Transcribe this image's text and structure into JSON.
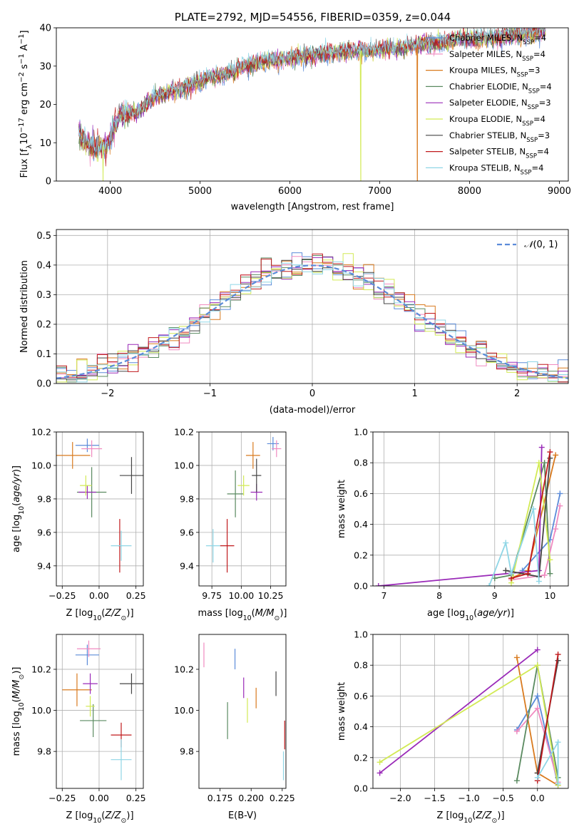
{
  "figure": {
    "colors": {
      "Chabrier MILES": "#5b8bd9",
      "Salpeter MILES": "#f08ac0",
      "Kroupa MILES": "#d97a1e",
      "Chabrier ELODIE": "#5a8a60",
      "Salpeter ELODIE": "#9a2ab8",
      "Kroupa ELODIE": "#d2ea55",
      "Chabrier STELIB": "#444444",
      "Salpeter STELIB": "#c0191c",
      "Kroupa STELIB": "#8fd6e6"
    }
  },
  "chart_data": [
    {
      "id": "spectrum",
      "type": "line",
      "title": "PLATE=2792, MJD=54556, FIBERID=0359, z=0.044",
      "xlabel": "wavelength [Angstrom, rest frame]",
      "ylabel": "Flux [f",
      "ylabel_html": "Flux [fλ10⁻¹⁷ erg cm⁻² s⁻¹ A⁻¹]",
      "xlim": [
        3400,
        9100
      ],
      "ylim": [
        0,
        40
      ],
      "xticks": [
        4000,
        5000,
        6000,
        7000,
        8000,
        9000
      ],
      "yticks": [
        0,
        10,
        20,
        30,
        40
      ],
      "legend_placement": "top-right",
      "legend": [
        "Chabrier MILES, NSSP=4",
        "Salpeter MILES, NSSP=4",
        "Kroupa MILES, NSSP=3",
        "Chabrier ELODIE, NSSP=4",
        "Salpeter ELODIE, NSSP=3",
        "Kroupa ELODIE, NSSP=4",
        "Chabrier STELIB, NSSP=3",
        "Salpeter STELIB, NSSP=4",
        "Kroupa STELIB, NSSP=4"
      ],
      "continuum": {
        "x": [
          3650,
          3800,
          3950,
          4100,
          4300,
          4500,
          4700,
          4900,
          5100,
          5300,
          5500,
          5700,
          5900,
          6100,
          6300,
          6500,
          6700,
          6900,
          7100,
          7300,
          7500,
          7700,
          7900,
          8100,
          8300,
          8500,
          8700,
          8850
        ],
        "y": [
          12,
          9,
          9,
          17,
          18,
          22,
          23.5,
          25,
          27,
          28,
          30,
          31,
          31.5,
          32.5,
          33,
          33.5,
          34,
          34,
          34.5,
          35,
          36,
          36,
          37,
          37,
          37.5,
          38,
          38.5,
          39
        ]
      },
      "dropouts": [
        {
          "series": "Kroupa ELODIE",
          "x": 3920,
          "y": 0
        },
        {
          "series": "Kroupa ELODIE",
          "x": 6790,
          "y": 0
        },
        {
          "series": "Kroupa MILES",
          "x": 7420,
          "y": 0
        }
      ]
    },
    {
      "id": "residual-histogram",
      "type": "histogram",
      "xlabel": "(data-model)/error",
      "ylabel": "Normed distribution",
      "xlim": [
        -2.5,
        2.5
      ],
      "ylim": [
        0,
        0.52
      ],
      "xticks": [
        -2,
        -1,
        0,
        1,
        2
      ],
      "yticks": [
        0.0,
        0.1,
        0.2,
        0.3,
        0.4,
        0.5
      ],
      "grid": true,
      "bin_width": 0.1,
      "reference_curve": {
        "name": "𝒩(0,1)",
        "mean": 0,
        "sigma": 1,
        "style": "dashed"
      },
      "legend_placement": "top-right"
    },
    {
      "id": "age-vs-Z",
      "type": "scatter",
      "xlabel": "Z [log10(Z/Z☉)]",
      "ylabel": "age  [log10(age/yr)]",
      "xlim": [
        -0.29,
        0.3
      ],
      "ylim": [
        9.28,
        10.2
      ],
      "xticks": [
        -0.25,
        0.0,
        0.25
      ],
      "yticks": [
        9.4,
        9.6,
        9.8,
        10.0,
        10.2
      ],
      "grid": true,
      "points": [
        {
          "series": "Chabrier MILES",
          "x": -0.08,
          "xerr": 0.08,
          "y": 10.12,
          "yerr": 0.04
        },
        {
          "series": "Salpeter MILES",
          "x": -0.05,
          "xerr": 0.07,
          "y": 10.1,
          "yerr": 0.05
        },
        {
          "series": "Kroupa MILES",
          "x": -0.18,
          "xerr": 0.12,
          "y": 10.06,
          "yerr": 0.08
        },
        {
          "series": "Chabrier ELODIE",
          "x": -0.05,
          "xerr": 0.1,
          "y": 9.84,
          "yerr": 0.15
        },
        {
          "series": "Salpeter ELODIE",
          "x": -0.08,
          "xerr": 0.06,
          "y": 9.84,
          "yerr": 0.04
        },
        {
          "series": "Kroupa ELODIE",
          "x": -0.09,
          "xerr": 0.04,
          "y": 9.88,
          "yerr": 0.06
        },
        {
          "series": "Chabrier STELIB",
          "x": 0.22,
          "xerr": 0.08,
          "y": 9.94,
          "yerr": 0.11
        },
        {
          "series": "Salpeter STELIB",
          "x": 0.14,
          "xerr": 0.01,
          "y": 9.52,
          "yerr": 0.16
        },
        {
          "series": "Kroupa STELIB",
          "x": 0.15,
          "xerr": 0.07,
          "y": 9.52,
          "yerr": 0.09
        }
      ]
    },
    {
      "id": "age-vs-mass",
      "type": "scatter",
      "xlabel": "mass [log10(M/M☉)]",
      "ylabel": "",
      "xlim": [
        9.64,
        10.38
      ],
      "ylim": [
        9.28,
        10.2
      ],
      "xticks": [
        9.75,
        10.0,
        10.25
      ],
      "yticks": [
        9.4,
        9.6,
        9.8,
        10.0,
        10.2
      ],
      "grid": true,
      "points": [
        {
          "series": "Chabrier MILES",
          "x": 10.27,
          "xerr": 0.05,
          "y": 10.13,
          "yerr": 0.04
        },
        {
          "series": "Salpeter MILES",
          "x": 10.3,
          "xerr": 0.04,
          "y": 10.1,
          "yerr": 0.05
        },
        {
          "series": "Kroupa MILES",
          "x": 10.1,
          "xerr": 0.06,
          "y": 10.06,
          "yerr": 0.08
        },
        {
          "series": "Chabrier ELODIE",
          "x": 9.95,
          "xerr": 0.07,
          "y": 9.83,
          "yerr": 0.14
        },
        {
          "series": "Salpeter ELODIE",
          "x": 10.13,
          "xerr": 0.05,
          "y": 9.84,
          "yerr": 0.05
        },
        {
          "series": "Kroupa ELODIE",
          "x": 10.02,
          "xerr": 0.05,
          "y": 9.88,
          "yerr": 0.06
        },
        {
          "series": "Chabrier STELIB",
          "x": 10.13,
          "xerr": 0.04,
          "y": 9.94,
          "yerr": 0.1
        },
        {
          "series": "Salpeter STELIB",
          "x": 9.88,
          "xerr": 0.06,
          "y": 9.52,
          "yerr": 0.16
        },
        {
          "series": "Kroupa STELIB",
          "x": 9.76,
          "xerr": 0.06,
          "y": 9.52,
          "yerr": 0.1
        }
      ]
    },
    {
      "id": "massweight-vs-age",
      "type": "line",
      "xlabel": "age  [log10(age/yr)]",
      "ylabel": "mass weight",
      "xlim": [
        6.8,
        10.33
      ],
      "ylim": [
        0.0,
        1.0
      ],
      "xticks": [
        7,
        8,
        9,
        10
      ],
      "yticks": [
        0.0,
        0.2,
        0.4,
        0.6,
        0.8,
        1.0
      ],
      "grid": true,
      "series": [
        {
          "name": "Chabrier MILES",
          "x": [
            9.5,
            10.0,
            10.18
          ],
          "y": [
            0.1,
            0.3,
            0.6
          ]
        },
        {
          "name": "Salpeter MILES",
          "x": [
            9.3,
            9.9,
            10.1,
            10.18
          ],
          "y": [
            0.04,
            0.07,
            0.37,
            0.52
          ]
        },
        {
          "name": "Kroupa MILES",
          "x": [
            9.3,
            9.6,
            10.1
          ],
          "y": [
            0.05,
            0.1,
            0.85
          ]
        },
        {
          "name": "Chabrier ELODIE",
          "x": [
            9.0,
            9.3,
            9.9,
            10.0
          ],
          "y": [
            0.05,
            0.07,
            0.8,
            0.08
          ]
        },
        {
          "name": "Salpeter ELODIE",
          "x": [
            6.9,
            9.8,
            9.85
          ],
          "y": [
            0.0,
            0.1,
            0.9
          ]
        },
        {
          "name": "Kroupa ELODIE",
          "x": [
            9.3,
            9.8,
            10.0
          ],
          "y": [
            0.02,
            0.8,
            0.17
          ]
        },
        {
          "name": "Chabrier STELIB",
          "x": [
            9.2,
            9.8,
            10.0
          ],
          "y": [
            0.1,
            0.06,
            0.83
          ]
        },
        {
          "name": "Salpeter STELIB",
          "x": [
            9.3,
            9.6,
            10.0
          ],
          "y": [
            0.05,
            0.08,
            0.87
          ]
        },
        {
          "name": "Kroupa STELIB",
          "x": [
            8.9,
            9.2,
            9.3,
            9.7,
            9.8
          ],
          "y": [
            0.0,
            0.28,
            0.08,
            0.5,
            0.03
          ]
        }
      ]
    },
    {
      "id": "mass-vs-Z",
      "type": "scatter",
      "xlabel": "Z [log10(Z/Z☉)]",
      "ylabel": "mass [log10(M/M☉)]",
      "xlim": [
        -0.29,
        0.3
      ],
      "ylim": [
        9.62,
        10.37
      ],
      "xticks": [
        -0.25,
        0.0,
        0.25
      ],
      "yticks": [
        9.8,
        10.0,
        10.2
      ],
      "grid": true,
      "points": [
        {
          "series": "Chabrier MILES",
          "x": -0.08,
          "xerr": 0.08,
          "y": 10.27,
          "yerr": 0.05
        },
        {
          "series": "Salpeter MILES",
          "x": -0.07,
          "xerr": 0.08,
          "y": 10.3,
          "yerr": 0.04
        },
        {
          "series": "Kroupa MILES",
          "x": -0.15,
          "xerr": 0.1,
          "y": 10.1,
          "yerr": 0.08
        },
        {
          "series": "Chabrier ELODIE",
          "x": -0.04,
          "xerr": 0.09,
          "y": 9.95,
          "yerr": 0.08
        },
        {
          "series": "Salpeter ELODIE",
          "x": -0.06,
          "xerr": 0.05,
          "y": 10.13,
          "yerr": 0.05
        },
        {
          "series": "Kroupa ELODIE",
          "x": -0.06,
          "xerr": 0.03,
          "y": 10.02,
          "yerr": 0.05
        },
        {
          "series": "Chabrier STELIB",
          "x": 0.22,
          "xerr": 0.08,
          "y": 10.13,
          "yerr": 0.05
        },
        {
          "series": "Salpeter STELIB",
          "x": 0.15,
          "xerr": 0.07,
          "y": 9.88,
          "yerr": 0.06
        },
        {
          "series": "Kroupa STELIB",
          "x": 0.15,
          "xerr": 0.07,
          "y": 9.76,
          "yerr": 0.1
        }
      ]
    },
    {
      "id": "EBV",
      "type": "scatter",
      "xlabel": "E(B-V)",
      "ylabel": "",
      "xlim": [
        0.158,
        0.228
      ],
      "ylim": [
        9.62,
        10.37
      ],
      "xticks": [
        0.175,
        0.2,
        0.225
      ],
      "yticks": [
        9.8,
        10.0,
        10.2
      ],
      "grid": false,
      "points": [
        {
          "series": "Chabrier MILES",
          "x": 0.187,
          "xerr": 0,
          "y": 10.25,
          "yerr": 0.05
        },
        {
          "series": "Salpeter MILES",
          "x": 0.162,
          "xerr": 0,
          "y": 10.27,
          "yerr": 0.06
        },
        {
          "series": "Kroupa MILES",
          "x": 0.204,
          "xerr": 0,
          "y": 10.06,
          "yerr": 0.05
        },
        {
          "series": "Chabrier ELODIE",
          "x": 0.181,
          "xerr": 0,
          "y": 9.95,
          "yerr": 0.09
        },
        {
          "series": "Salpeter ELODIE",
          "x": 0.194,
          "xerr": 0,
          "y": 10.11,
          "yerr": 0.05
        },
        {
          "series": "Kroupa ELODIE",
          "x": 0.197,
          "xerr": 0,
          "y": 10.0,
          "yerr": 0.06
        },
        {
          "series": "Chabrier STELIB",
          "x": 0.22,
          "xerr": 0,
          "y": 10.13,
          "yerr": 0.06
        },
        {
          "series": "Salpeter STELIB",
          "x": 0.227,
          "xerr": 0,
          "y": 9.88,
          "yerr": 0.07
        },
        {
          "series": "Kroupa STELIB",
          "x": 0.226,
          "xerr": 0,
          "y": 9.73,
          "yerr": 0.07
        }
      ]
    },
    {
      "id": "massweight-vs-Z",
      "type": "line",
      "xlabel": "Z [log10(Z/Z☉)]",
      "ylabel": "mass weight",
      "xlim": [
        -2.4,
        0.45
      ],
      "ylim": [
        0.0,
        1.0
      ],
      "xticks": [
        -2.0,
        -1.5,
        -1.0,
        -0.5,
        0.0
      ],
      "yticks": [
        0.0,
        0.2,
        0.4,
        0.6,
        0.8,
        1.0
      ],
      "grid": true,
      "series": [
        {
          "name": "Chabrier MILES",
          "x": [
            -0.3,
            0.0,
            0.3
          ],
          "y": [
            0.38,
            0.6,
            0.02
          ]
        },
        {
          "name": "Salpeter MILES",
          "x": [
            -0.3,
            0.0,
            0.3
          ],
          "y": [
            0.37,
            0.52,
            0.04
          ]
        },
        {
          "name": "Kroupa MILES",
          "x": [
            -0.3,
            0.0,
            0.3
          ],
          "y": [
            0.85,
            0.1,
            0.02
          ]
        },
        {
          "name": "Chabrier ELODIE",
          "x": [
            -0.3,
            0.0,
            0.3
          ],
          "y": [
            0.05,
            0.8,
            0.07
          ]
        },
        {
          "name": "Salpeter ELODIE",
          "x": [
            -2.3,
            0.0
          ],
          "y": [
            0.1,
            0.9
          ]
        },
        {
          "name": "Kroupa ELODIE",
          "x": [
            -2.3,
            0.0,
            0.3
          ],
          "y": [
            0.17,
            0.8,
            0.02
          ]
        },
        {
          "name": "Chabrier STELIB",
          "x": [
            0.0,
            0.3
          ],
          "y": [
            0.1,
            0.83
          ]
        },
        {
          "name": "Salpeter STELIB",
          "x": [
            0.0,
            0.3
          ],
          "y": [
            0.05,
            0.87
          ]
        },
        {
          "name": "Kroupa STELIB",
          "x": [
            0.0,
            0.3,
            0.3
          ],
          "y": [
            0.07,
            0.3,
            0.03
          ]
        }
      ]
    }
  ]
}
